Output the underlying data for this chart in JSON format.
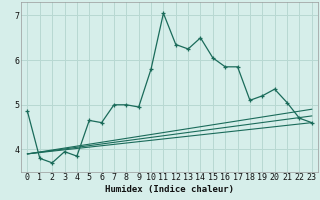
{
  "xlabel": "Humidex (Indice chaleur)",
  "bg_color": "#d6eeea",
  "grid_color": "#b8d8d2",
  "line_color": "#1a6b5a",
  "xlim": [
    -0.5,
    23.5
  ],
  "ylim": [
    3.5,
    7.3
  ],
  "yticks": [
    4,
    5,
    6,
    7
  ],
  "xticks": [
    0,
    1,
    2,
    3,
    4,
    5,
    6,
    7,
    8,
    9,
    10,
    11,
    12,
    13,
    14,
    15,
    16,
    17,
    18,
    19,
    20,
    21,
    22,
    23
  ],
  "series1_x": [
    0,
    1,
    2,
    3,
    4,
    5,
    6,
    7,
    8,
    9,
    10,
    11,
    12,
    13,
    14,
    15,
    16,
    17,
    18,
    19,
    20,
    21,
    22,
    23
  ],
  "series1_y": [
    4.85,
    3.8,
    3.7,
    3.95,
    3.85,
    4.65,
    4.6,
    5.0,
    5.0,
    4.95,
    5.8,
    7.05,
    6.35,
    6.25,
    6.5,
    6.05,
    5.85,
    5.85,
    5.1,
    5.2,
    5.35,
    5.05,
    4.7,
    4.6
  ],
  "series2_x": [
    0,
    23
  ],
  "series2_y": [
    3.9,
    4.6
  ],
  "series3_x": [
    0,
    23
  ],
  "series3_y": [
    3.9,
    4.75
  ],
  "series4_x": [
    0,
    23
  ],
  "series4_y": [
    3.9,
    4.9
  ]
}
